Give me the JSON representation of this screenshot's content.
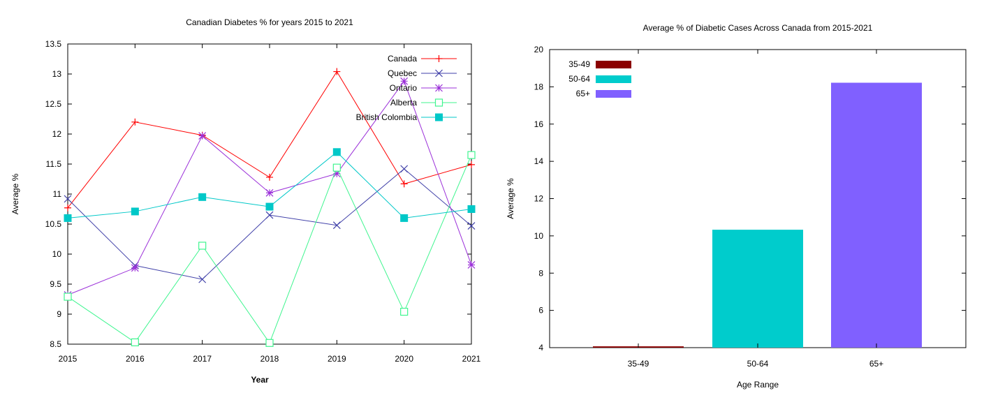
{
  "chart_data": [
    {
      "type": "line",
      "title": "Canadian Diabetes % for years 2015 to 2021",
      "xlabel": "Year",
      "ylabel": "Average %",
      "x": [
        2015,
        2016,
        2017,
        2018,
        2019,
        2020,
        2021
      ],
      "xlim": [
        2015,
        2021
      ],
      "ylim": [
        8.5,
        13.5
      ],
      "yticks": [
        "8.5",
        "9",
        "9.5",
        "10",
        "10.5",
        "11",
        "11.5",
        "12",
        "12.5",
        "13",
        "13.5"
      ],
      "legend_position": "top-right",
      "grid": false,
      "series": [
        {
          "name": "Canada",
          "color": "#ff0000",
          "marker": "plus",
          "values": [
            10.77,
            12.2,
            11.98,
            11.28,
            13.04,
            11.17,
            11.49
          ]
        },
        {
          "name": "Quebec",
          "color": "#3f3fa8",
          "marker": "cross",
          "values": [
            10.92,
            9.81,
            9.58,
            10.65,
            10.48,
            11.42,
            10.47
          ]
        },
        {
          "name": "Ontario",
          "color": "#9b30d9",
          "marker": "star",
          "values": [
            9.32,
            9.77,
            11.97,
            11.02,
            11.34,
            12.88,
            9.82
          ]
        },
        {
          "name": "Alberta",
          "color": "#3ff58f",
          "marker": "open-square",
          "values": [
            9.29,
            8.53,
            10.14,
            8.52,
            11.44,
            9.04,
            11.65
          ]
        },
        {
          "name": "British Colombia",
          "color": "#00c8c8",
          "marker": "filled-square",
          "values": [
            10.6,
            10.71,
            10.95,
            10.79,
            11.7,
            10.6,
            10.75
          ]
        }
      ]
    },
    {
      "type": "bar",
      "title": "Average % of Diabetic Cases Across Canada from 2015-2021",
      "xlabel": "Age Range",
      "ylabel": "Average %",
      "categories": [
        "35-49",
        "50-64",
        "65+"
      ],
      "values": [
        4.07,
        10.33,
        18.22
      ],
      "colors": [
        "#8b0000",
        "#00cccc",
        "#8060ff"
      ],
      "ylim": [
        4,
        20
      ],
      "yticks": [
        "4",
        "6",
        "8",
        "10",
        "12",
        "14",
        "16",
        "18",
        "20"
      ],
      "legend_position": "top-left",
      "legend": [
        "35-49",
        "50-64",
        "65+"
      ],
      "grid": false
    }
  ]
}
